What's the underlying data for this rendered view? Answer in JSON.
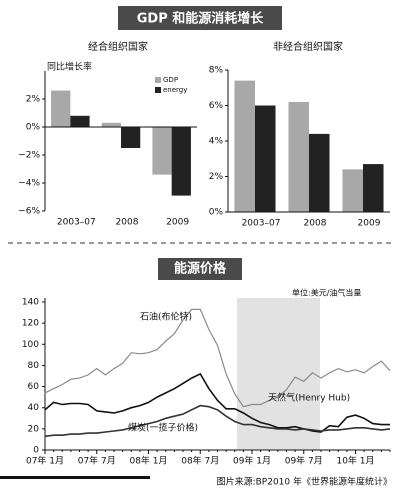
{
  "title": "GDP 和能源消耗增长",
  "source": "图片来源:BP2010 年《世界能源年度统计》",
  "chart_data": [
    {
      "type": "bar",
      "title": "经合组织国家",
      "ylabel": "同比增长率",
      "categories": [
        "2003–07",
        "2008",
        "2009"
      ],
      "series": [
        {
          "name": "GDP",
          "color": "#a8a8a8",
          "values": [
            2.6,
            0.3,
            -3.4
          ]
        },
        {
          "name": "energy",
          "color": "#222222",
          "values": [
            0.8,
            -1.5,
            -4.9
          ]
        }
      ],
      "ylim": [
        -6,
        4
      ],
      "yticks": [
        {
          "value": -6,
          "label": "−6%"
        },
        {
          "value": -4,
          "label": "−4%"
        },
        {
          "value": -2,
          "label": "−2%"
        },
        {
          "value": 0,
          "label": "0%"
        },
        {
          "value": 2,
          "label": "2%"
        }
      ]
    },
    {
      "type": "bar",
      "title": "非经合组织国家",
      "categories": [
        "2003–07",
        "2008",
        "2009"
      ],
      "series": [
        {
          "color": "#a8a8a8",
          "values": [
            7.4,
            6.2,
            2.4
          ]
        },
        {
          "color": "#222222",
          "values": [
            6.0,
            4.4,
            2.7
          ]
        }
      ],
      "ylim": [
        0,
        8
      ],
      "yticks": [
        {
          "value": 0,
          "label": "0%"
        },
        {
          "value": 2,
          "label": "2%"
        },
        {
          "value": 4,
          "label": "4%"
        },
        {
          "value": 6,
          "label": "6%"
        },
        {
          "value": 8,
          "label": "8%"
        }
      ]
    },
    {
      "type": "line",
      "title": "能源价格",
      "unit": "单位:美元/油气当量",
      "categories": [
        "07年 1月",
        null,
        null,
        null,
        null,
        null,
        "07年 7月",
        null,
        null,
        null,
        null,
        null,
        "08年 1月",
        null,
        null,
        null,
        null,
        null,
        "08年 7月",
        null,
        null,
        null,
        null,
        null,
        "09年 1月",
        null,
        null,
        null,
        null,
        null,
        "09年 7月",
        null,
        null,
        null,
        null,
        null,
        "10年 1月",
        null,
        null,
        null,
        null
      ],
      "series": [
        {
          "name": "石油(布伦特)",
          "color": "#8a8a8a",
          "values": [
            54,
            58,
            62,
            67,
            68,
            71,
            77,
            71,
            77,
            82,
            92,
            91,
            92,
            95,
            103,
            110,
            123,
            133,
            133,
            114,
            99,
            72,
            53,
            41,
            43,
            43,
            47,
            50,
            57,
            69,
            65,
            73,
            68,
            73,
            77,
            74,
            76,
            73,
            79,
            84,
            75
          ]
        },
        {
          "name": "天然气(Henry Hub)",
          "color": "#111111",
          "values": [
            38,
            45,
            43,
            44,
            44,
            43,
            37,
            36,
            35,
            37,
            40,
            42,
            45,
            50,
            54,
            58,
            63,
            68,
            72,
            58,
            47,
            39,
            39,
            35,
            30,
            26,
            24,
            21,
            21,
            22,
            20,
            18,
            17,
            23,
            22,
            31,
            33,
            30,
            25,
            24,
            24
          ]
        },
        {
          "name": "煤炭(一揽子价格)",
          "color": "#333333",
          "values": [
            13,
            14,
            14,
            15,
            15,
            16,
            16,
            17,
            18,
            19,
            21,
            23,
            25,
            27,
            30,
            32,
            34,
            38,
            42,
            41,
            38,
            32,
            27,
            24,
            24,
            22,
            21,
            20,
            20,
            19,
            20,
            19,
            18,
            19,
            19,
            20,
            21,
            21,
            20,
            19,
            20
          ]
        }
      ],
      "ylim": [
        0,
        140
      ],
      "yticks": [
        0,
        20,
        40,
        60,
        80,
        100,
        120,
        140
      ]
    }
  ]
}
